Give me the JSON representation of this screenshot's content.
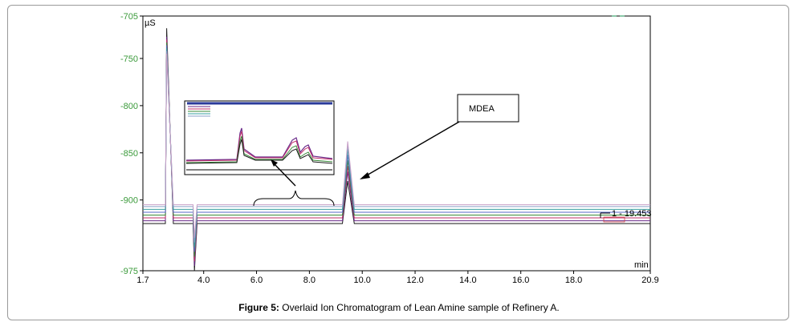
{
  "chart_data": {
    "type": "line",
    "title": "",
    "xlabel": "min",
    "ylabel": "µS",
    "xlim": [
      1.7,
      20.9
    ],
    "ylim": [
      -975,
      -705
    ],
    "x_ticks": [
      1.7,
      4.0,
      6.0,
      8.0,
      10.0,
      12.0,
      14.0,
      16.0,
      18.0,
      20.9
    ],
    "x_tick_labels": [
      "1.7",
      "4.0",
      "6.0",
      "8.0",
      "10.0",
      "12.0",
      "14.0",
      "16.0",
      "18.0",
      "20.9"
    ],
    "y_ticks": [
      -705,
      -750,
      -800,
      -850,
      -900,
      -975
    ],
    "y_tick_labels": [
      "-705",
      "-750",
      "-800",
      "-850",
      "-900",
      "-975"
    ],
    "peak_label": "1 - 19.453",
    "annotation": "MDEA",
    "series_colors": [
      "#1a1a1a",
      "#6a2a8a",
      "#c0306a",
      "#3a8a3a",
      "#5a6ac8",
      "#3aa0a0",
      "#8aa0c8",
      "#c8a0c8"
    ],
    "series": [
      {
        "x": [
          1.7,
          2.55,
          2.6,
          2.85,
          3.6,
          3.65,
          3.75,
          4.2,
          9.25,
          9.45,
          9.7,
          20.9
        ],
        "y": [
          -925,
          -925,
          -718,
          -925,
          -925,
          -975,
          -925,
          -925,
          -925,
          -880,
          -925,
          -925
        ]
      },
      {
        "x": [
          1.7,
          2.55,
          2.6,
          2.85,
          3.6,
          3.65,
          3.75,
          4.2,
          9.25,
          9.45,
          9.7,
          20.9
        ],
        "y": [
          -922,
          -922,
          -727,
          -922,
          -922,
          -970,
          -922,
          -922,
          -922,
          -870,
          -922,
          -922
        ]
      },
      {
        "x": [
          1.7,
          2.55,
          2.6,
          2.85,
          3.6,
          3.65,
          3.75,
          4.2,
          9.25,
          9.45,
          9.7,
          20.9
        ],
        "y": [
          -919,
          -919,
          -730,
          -919,
          -919,
          -965,
          -919,
          -919,
          -919,
          -864,
          -919,
          -919
        ]
      },
      {
        "x": [
          1.7,
          2.55,
          2.6,
          2.85,
          3.6,
          3.65,
          3.75,
          4.2,
          9.25,
          9.45,
          9.7,
          20.9
        ],
        "y": [
          -916,
          -916,
          -733,
          -916,
          -916,
          -960,
          -916,
          -916,
          -916,
          -858,
          -916,
          -916
        ]
      },
      {
        "x": [
          1.7,
          2.55,
          2.6,
          2.85,
          3.6,
          3.65,
          3.75,
          4.2,
          9.25,
          9.45,
          9.7,
          20.9
        ],
        "y": [
          -913,
          -913,
          -736,
          -913,
          -913,
          -955,
          -913,
          -913,
          -913,
          -852,
          -913,
          -913
        ]
      },
      {
        "x": [
          1.7,
          2.55,
          2.6,
          2.85,
          3.6,
          3.65,
          3.75,
          4.2,
          9.25,
          9.45,
          9.7,
          20.9
        ],
        "y": [
          -910,
          -910,
          -739,
          -910,
          -910,
          -950,
          -910,
          -910,
          -910,
          -846,
          -910,
          -910
        ]
      },
      {
        "x": [
          1.7,
          2.55,
          2.6,
          2.85,
          3.6,
          3.65,
          3.75,
          4.2,
          9.25,
          9.45,
          9.7,
          20.9
        ],
        "y": [
          -907,
          -907,
          -742,
          -907,
          -907,
          -945,
          -907,
          -907,
          -907,
          -841,
          -907,
          -907
        ]
      },
      {
        "x": [
          1.7,
          2.55,
          2.6,
          2.85,
          3.6,
          3.65,
          3.75,
          4.2,
          9.25,
          9.45,
          9.7,
          20.9
        ],
        "y": [
          -905,
          -905,
          -745,
          -905,
          -905,
          -940,
          -905,
          -905,
          -905,
          -838,
          -905,
          -905
        ]
      }
    ]
  },
  "caption": {
    "label": "Figure 5:",
    "text": " Overlaid Ion Chromatogram of Lean Amine sample of Refinery A."
  }
}
